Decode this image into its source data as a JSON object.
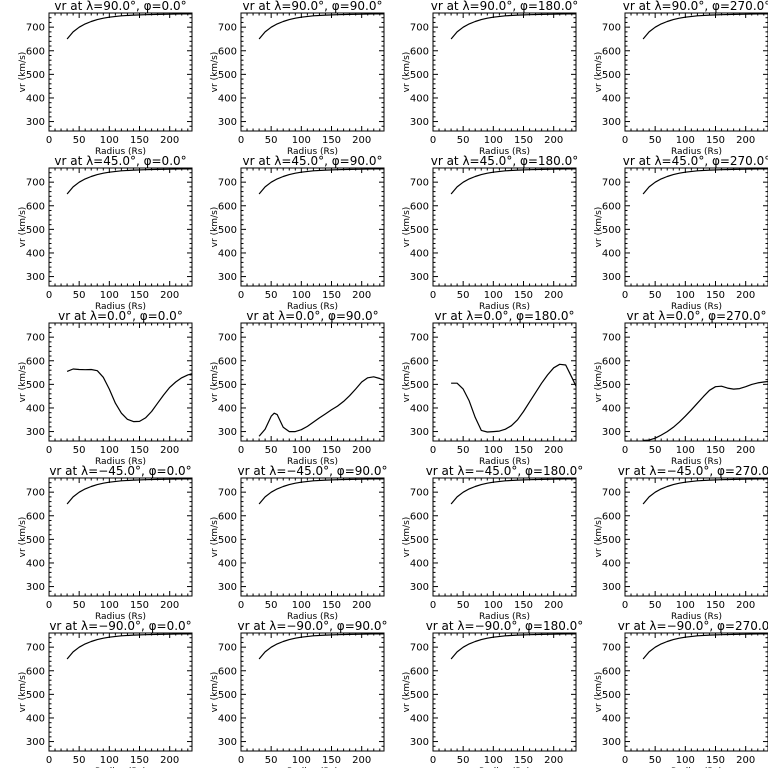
{
  "figure": {
    "axis_x_label": "Radius (Rs)",
    "axis_y_label": "vr (km/s)",
    "x_ticks": [
      0,
      50,
      100,
      150,
      200
    ],
    "y_ticks": [
      300,
      400,
      500,
      600,
      700
    ]
  },
  "chart_data": [
    {
      "type": "line",
      "title": "vr at λ=90.0°, φ=0.0°",
      "xlabel": "Radius (Rs)",
      "ylabel": "vr (km/s)",
      "xlim": [
        0,
        237
      ],
      "ylim": [
        260,
        760
      ],
      "series": [
        {
          "x": [
            30,
            40,
            50,
            60,
            70,
            80,
            90,
            100,
            120,
            140,
            160,
            180,
            200,
            220,
            237
          ],
          "y": [
            650,
            680,
            700,
            714,
            724,
            732,
            738,
            742,
            748,
            751,
            753,
            754,
            755,
            756,
            756
          ]
        }
      ]
    },
    {
      "type": "line",
      "title": "vr at λ=90.0°, φ=90.0°",
      "xlabel": "Radius (Rs)",
      "ylabel": "vr (km/s)",
      "xlim": [
        0,
        237
      ],
      "ylim": [
        260,
        760
      ],
      "series": [
        {
          "x": [
            30,
            40,
            50,
            60,
            70,
            80,
            90,
            100,
            120,
            140,
            160,
            180,
            200,
            220,
            237
          ],
          "y": [
            650,
            680,
            700,
            714,
            724,
            732,
            738,
            742,
            748,
            751,
            753,
            754,
            755,
            756,
            756
          ]
        }
      ]
    },
    {
      "type": "line",
      "title": "vr at λ=90.0°, φ=180.0°",
      "xlabel": "Radius (Rs)",
      "ylabel": "vr (km/s)",
      "xlim": [
        0,
        237
      ],
      "ylim": [
        260,
        760
      ],
      "series": [
        {
          "x": [
            30,
            40,
            50,
            60,
            70,
            80,
            90,
            100,
            120,
            140,
            160,
            180,
            200,
            220,
            237
          ],
          "y": [
            650,
            680,
            700,
            714,
            724,
            732,
            738,
            742,
            748,
            751,
            753,
            754,
            755,
            756,
            756
          ]
        }
      ]
    },
    {
      "type": "line",
      "title": "vr at λ=90.0°, φ=270.0°",
      "xlabel": "Radius (Rs)",
      "ylabel": "vr (km/s)",
      "xlim": [
        0,
        237
      ],
      "ylim": [
        260,
        760
      ],
      "series": [
        {
          "x": [
            30,
            40,
            50,
            60,
            70,
            80,
            90,
            100,
            120,
            140,
            160,
            180,
            200,
            220,
            237
          ],
          "y": [
            650,
            680,
            700,
            714,
            724,
            732,
            738,
            742,
            748,
            751,
            753,
            754,
            755,
            756,
            756
          ]
        }
      ]
    },
    {
      "type": "line",
      "title": "vr at λ=45.0°, φ=0.0°",
      "xlabel": "Radius (Rs)",
      "ylabel": "vr (km/s)",
      "xlim": [
        0,
        237
      ],
      "ylim": [
        260,
        760
      ],
      "series": [
        {
          "x": [
            30,
            40,
            50,
            60,
            70,
            80,
            90,
            100,
            120,
            140,
            160,
            180,
            200,
            220,
            237
          ],
          "y": [
            650,
            680,
            700,
            714,
            724,
            732,
            738,
            742,
            748,
            751,
            753,
            754,
            755,
            756,
            756
          ]
        }
      ]
    },
    {
      "type": "line",
      "title": "vr at λ=45.0°, φ=90.0°",
      "xlabel": "Radius (Rs)",
      "ylabel": "vr (km/s)",
      "xlim": [
        0,
        237
      ],
      "ylim": [
        260,
        760
      ],
      "series": [
        {
          "x": [
            30,
            40,
            50,
            60,
            70,
            80,
            90,
            100,
            120,
            140,
            160,
            180,
            200,
            220,
            237
          ],
          "y": [
            650,
            680,
            700,
            714,
            724,
            732,
            738,
            742,
            748,
            751,
            753,
            754,
            755,
            756,
            756
          ]
        }
      ]
    },
    {
      "type": "line",
      "title": "vr at λ=45.0°, φ=180.0°",
      "xlabel": "Radius (Rs)",
      "ylabel": "vr (km/s)",
      "xlim": [
        0,
        237
      ],
      "ylim": [
        260,
        760
      ],
      "series": [
        {
          "x": [
            30,
            40,
            50,
            60,
            70,
            80,
            90,
            100,
            120,
            140,
            160,
            180,
            200,
            220,
            237
          ],
          "y": [
            650,
            680,
            700,
            714,
            724,
            732,
            738,
            742,
            748,
            751,
            753,
            754,
            755,
            756,
            756
          ]
        }
      ]
    },
    {
      "type": "line",
      "title": "vr at λ=45.0°, φ=270.0°",
      "xlabel": "Radius (Rs)",
      "ylabel": "vr (km/s)",
      "xlim": [
        0,
        237
      ],
      "ylim": [
        260,
        760
      ],
      "series": [
        {
          "x": [
            30,
            40,
            50,
            60,
            70,
            80,
            90,
            100,
            120,
            140,
            160,
            180,
            200,
            220,
            237
          ],
          "y": [
            650,
            680,
            700,
            714,
            724,
            732,
            738,
            742,
            748,
            751,
            753,
            754,
            755,
            756,
            756
          ]
        }
      ]
    },
    {
      "type": "line",
      "title": "vr at λ=0.0°, φ=0.0°",
      "xlabel": "Radius (Rs)",
      "ylabel": "vr (km/s)",
      "xlim": [
        0,
        237
      ],
      "ylim": [
        260,
        760
      ],
      "series": [
        {
          "x": [
            30,
            40,
            50,
            60,
            70,
            80,
            90,
            100,
            110,
            120,
            130,
            140,
            150,
            160,
            170,
            180,
            190,
            200,
            210,
            220,
            230,
            237
          ],
          "y": [
            555,
            565,
            563,
            562,
            563,
            558,
            530,
            480,
            420,
            378,
            352,
            342,
            343,
            358,
            385,
            420,
            455,
            487,
            510,
            528,
            540,
            545
          ]
        }
      ]
    },
    {
      "type": "line",
      "title": "vr at λ=0.0°, φ=90.0°",
      "xlabel": "Radius (Rs)",
      "ylabel": "vr (km/s)",
      "xlim": [
        0,
        237
      ],
      "ylim": [
        260,
        760
      ],
      "series": [
        {
          "x": [
            30,
            40,
            50,
            55,
            60,
            70,
            80,
            90,
            100,
            110,
            120,
            130,
            140,
            150,
            160,
            170,
            180,
            190,
            200,
            210,
            220,
            230,
            237
          ],
          "y": [
            280,
            310,
            365,
            378,
            372,
            318,
            300,
            300,
            308,
            322,
            340,
            358,
            375,
            392,
            408,
            428,
            452,
            480,
            510,
            528,
            532,
            525,
            518
          ]
        }
      ]
    },
    {
      "type": "line",
      "title": "vr at λ=0.0°, φ=180.0°",
      "xlabel": "Radius (Rs)",
      "ylabel": "vr (km/s)",
      "xlim": [
        0,
        237
      ],
      "ylim": [
        260,
        760
      ],
      "series": [
        {
          "x": [
            30,
            40,
            50,
            60,
            70,
            80,
            90,
            100,
            110,
            120,
            130,
            140,
            150,
            160,
            170,
            180,
            190,
            200,
            210,
            220,
            230,
            237
          ],
          "y": [
            505,
            505,
            480,
            430,
            360,
            305,
            298,
            300,
            302,
            310,
            325,
            350,
            385,
            425,
            465,
            505,
            540,
            570,
            585,
            582,
            530,
            492
          ]
        }
      ]
    },
    {
      "type": "line",
      "title": "vr at λ=0.0°, φ=270.0°",
      "xlabel": "Radius (Rs)",
      "ylabel": "vr (km/s)",
      "xlim": [
        0,
        237
      ],
      "ylim": [
        260,
        760
      ],
      "series": [
        {
          "x": [
            30,
            40,
            50,
            60,
            70,
            80,
            90,
            100,
            110,
            120,
            130,
            140,
            150,
            160,
            170,
            180,
            190,
            200,
            210,
            220,
            230,
            237
          ],
          "y": [
            262,
            264,
            272,
            285,
            300,
            318,
            340,
            365,
            392,
            420,
            448,
            475,
            490,
            492,
            484,
            480,
            482,
            490,
            500,
            506,
            510,
            512
          ]
        }
      ]
    },
    {
      "type": "line",
      "title": "vr at λ=−45.0°, φ=0.0°",
      "xlabel": "Radius (Rs)",
      "ylabel": "vr (km/s)",
      "xlim": [
        0,
        237
      ],
      "ylim": [
        260,
        760
      ],
      "series": [
        {
          "x": [
            30,
            40,
            50,
            60,
            70,
            80,
            90,
            100,
            120,
            140,
            160,
            180,
            200,
            220,
            237
          ],
          "y": [
            650,
            680,
            700,
            714,
            724,
            732,
            738,
            742,
            748,
            751,
            753,
            754,
            755,
            756,
            756
          ]
        }
      ]
    },
    {
      "type": "line",
      "title": "vr at λ=−45.0°, φ=90.0°",
      "xlabel": "Radius (Rs)",
      "ylabel": "vr (km/s)",
      "xlim": [
        0,
        237
      ],
      "ylim": [
        260,
        760
      ],
      "series": [
        {
          "x": [
            30,
            40,
            50,
            60,
            70,
            80,
            90,
            100,
            120,
            140,
            160,
            180,
            200,
            220,
            237
          ],
          "y": [
            650,
            680,
            700,
            714,
            724,
            732,
            738,
            742,
            748,
            751,
            753,
            754,
            755,
            756,
            756
          ]
        }
      ]
    },
    {
      "type": "line",
      "title": "vr at λ=−45.0°, φ=180.0°",
      "xlabel": "Radius (Rs)",
      "ylabel": "vr (km/s)",
      "xlim": [
        0,
        237
      ],
      "ylim": [
        260,
        760
      ],
      "series": [
        {
          "x": [
            30,
            40,
            50,
            60,
            70,
            80,
            90,
            100,
            120,
            140,
            160,
            180,
            200,
            220,
            237
          ],
          "y": [
            650,
            680,
            700,
            714,
            724,
            732,
            738,
            742,
            748,
            751,
            753,
            754,
            755,
            756,
            756
          ]
        }
      ]
    },
    {
      "type": "line",
      "title": "vr at λ=−45.0°, φ=270.0°",
      "xlabel": "Radius (Rs)",
      "ylabel": "vr (km/s)",
      "xlim": [
        0,
        237
      ],
      "ylim": [
        260,
        760
      ],
      "series": [
        {
          "x": [
            30,
            40,
            50,
            60,
            70,
            80,
            90,
            100,
            120,
            140,
            160,
            180,
            200,
            220,
            237
          ],
          "y": [
            650,
            680,
            700,
            714,
            724,
            732,
            738,
            742,
            748,
            751,
            753,
            754,
            755,
            756,
            756
          ]
        }
      ]
    },
    {
      "type": "line",
      "title": "vr at λ=−90.0°, φ=0.0°",
      "xlabel": "Radius (Rs)",
      "ylabel": "vr (km/s)",
      "xlim": [
        0,
        237
      ],
      "ylim": [
        260,
        760
      ],
      "series": [
        {
          "x": [
            30,
            40,
            50,
            60,
            70,
            80,
            90,
            100,
            120,
            140,
            160,
            180,
            200,
            220,
            237
          ],
          "y": [
            650,
            680,
            700,
            714,
            724,
            732,
            738,
            742,
            748,
            751,
            753,
            754,
            755,
            756,
            756
          ]
        }
      ]
    },
    {
      "type": "line",
      "title": "vr at λ=−90.0°, φ=90.0°",
      "xlabel": "Radius (Rs)",
      "ylabel": "vr (km/s)",
      "xlim": [
        0,
        237
      ],
      "ylim": [
        260,
        760
      ],
      "series": [
        {
          "x": [
            30,
            40,
            50,
            60,
            70,
            80,
            90,
            100,
            120,
            140,
            160,
            180,
            200,
            220,
            237
          ],
          "y": [
            650,
            680,
            700,
            714,
            724,
            732,
            738,
            742,
            748,
            751,
            753,
            754,
            755,
            756,
            756
          ]
        }
      ]
    },
    {
      "type": "line",
      "title": "vr at λ=−90.0°, φ=180.0°",
      "xlabel": "Radius (Rs)",
      "ylabel": "vr (km/s)",
      "xlim": [
        0,
        237
      ],
      "ylim": [
        260,
        760
      ],
      "series": [
        {
          "x": [
            30,
            40,
            50,
            60,
            70,
            80,
            90,
            100,
            120,
            140,
            160,
            180,
            200,
            220,
            237
          ],
          "y": [
            650,
            680,
            700,
            714,
            724,
            732,
            738,
            742,
            748,
            751,
            753,
            754,
            755,
            756,
            756
          ]
        }
      ]
    },
    {
      "type": "line",
      "title": "vr at λ=−90.0°, φ=270.0°",
      "xlabel": "Radius (Rs)",
      "ylabel": "vr (km/s)",
      "xlim": [
        0,
        237
      ],
      "ylim": [
        260,
        760
      ],
      "series": [
        {
          "x": [
            30,
            40,
            50,
            60,
            70,
            80,
            90,
            100,
            120,
            140,
            160,
            180,
            200,
            220,
            237
          ],
          "y": [
            650,
            680,
            700,
            714,
            724,
            732,
            738,
            742,
            748,
            751,
            753,
            754,
            755,
            756,
            756
          ]
        }
      ]
    }
  ]
}
